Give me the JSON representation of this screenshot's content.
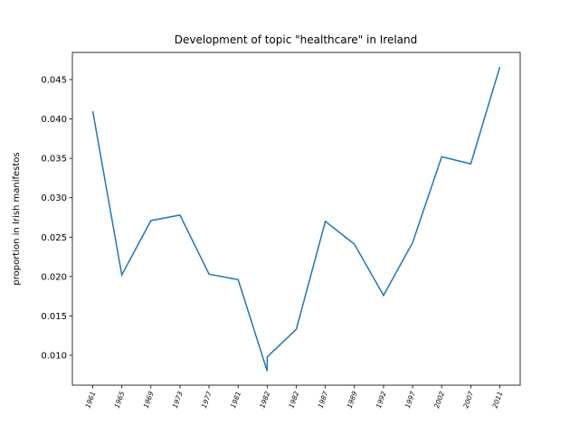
{
  "chart_data": {
    "type": "line",
    "title": "Development of topic \"healthcare\" in Ireland",
    "y_label": "proportion in Irish manifestos",
    "x": [
      0,
      1,
      2,
      3,
      4,
      5,
      6,
      6,
      7,
      8,
      9,
      10,
      11,
      12,
      13,
      14
    ],
    "series": [
      {
        "name": "healthcare",
        "color": "#1f77b4",
        "values": [
          0.041,
          0.0202,
          0.0271,
          0.0278,
          0.0203,
          0.0196,
          0.008,
          0.0098,
          0.0133,
          0.027,
          0.0241,
          0.0176,
          0.0243,
          0.0352,
          0.0343,
          0.0466
        ]
      }
    ],
    "xlim": [
      -0.7,
      14.7
    ],
    "xticks": [
      {
        "value": 0,
        "label": "1961"
      },
      {
        "value": 1,
        "label": "1965"
      },
      {
        "value": 2,
        "label": "1969"
      },
      {
        "value": 3,
        "label": "1973"
      },
      {
        "value": 4,
        "label": "1977"
      },
      {
        "value": 5,
        "label": "1981"
      },
      {
        "value": 6,
        "label": "1982"
      },
      {
        "value": 7,
        "label": "1982"
      },
      {
        "value": 8,
        "label": "1987"
      },
      {
        "value": 9,
        "label": "1989"
      },
      {
        "value": 10,
        "label": "1992"
      },
      {
        "value": 11,
        "label": "1997"
      },
      {
        "value": 12,
        "label": "2002"
      },
      {
        "value": 13,
        "label": "2007"
      },
      {
        "value": 14,
        "label": "2011"
      }
    ],
    "ylim": [
      0.00621,
      0.04844
    ],
    "yticks": [
      {
        "value": 0.01,
        "label": "0.010"
      },
      {
        "value": 0.015,
        "label": "0.015"
      },
      {
        "value": 0.02,
        "label": "0.020"
      },
      {
        "value": 0.025,
        "label": "0.025"
      },
      {
        "value": 0.03,
        "label": "0.030"
      },
      {
        "value": 0.035,
        "label": "0.035"
      },
      {
        "value": 0.04,
        "label": "0.040"
      },
      {
        "value": 0.045,
        "label": "0.045"
      }
    ]
  }
}
